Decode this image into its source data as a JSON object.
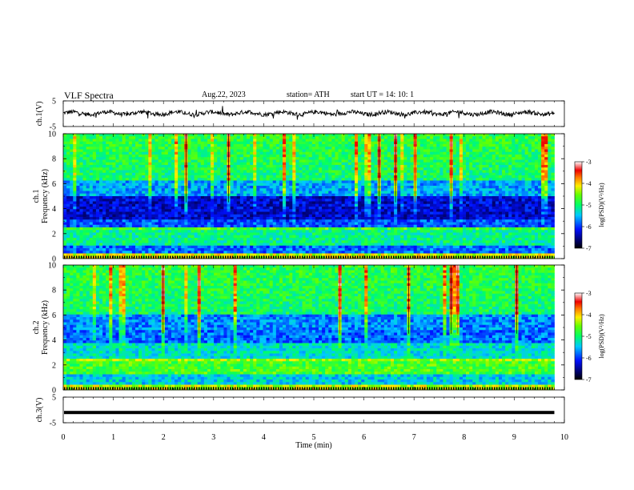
{
  "header": {
    "title": "VLF  Spectra",
    "date": "Aug.22, 2023",
    "station": "station= ATH",
    "start": "start  UT  =    14: 10: 1"
  },
  "chart_data": [
    {
      "type": "line",
      "panel": "ch1-waveform",
      "ylabel": "ch.1(V)",
      "ylim": [
        -5,
        5
      ],
      "yticks": [
        "5",
        "-5"
      ],
      "xlim": [
        0,
        10
      ],
      "duration_min": 9.8,
      "baseline": 0.2,
      "color": "#000000"
    },
    {
      "type": "heatmap",
      "panel": "ch1-spectrogram",
      "ylabel": "ch.1\nFrequency (kHz)",
      "ylim": [
        0,
        10
      ],
      "yticks": [
        "0",
        "2",
        "4",
        "6",
        "8",
        "10"
      ],
      "xlim": [
        0,
        10
      ],
      "duration_min": 9.8,
      "colorbar": {
        "label": "log(PSD)(V²/Hz)",
        "range": [
          -7,
          -3
        ],
        "ticks": [
          "-3",
          "-4",
          "-5",
          "-6",
          "-7"
        ]
      }
    },
    {
      "type": "heatmap",
      "panel": "ch2-spectrogram",
      "ylabel": "ch.2\nFrequency (kHz)",
      "ylim": [
        0,
        10
      ],
      "yticks": [
        "0",
        "2",
        "4",
        "6",
        "8",
        "10"
      ],
      "xlim": [
        0,
        10
      ],
      "duration_min": 9.8,
      "colorbar": {
        "label": "log(PSD)(V²/Hz)",
        "range": [
          -7,
          -3
        ],
        "ticks": [
          "-3",
          "-4",
          "-5",
          "-6",
          "-7"
        ]
      }
    },
    {
      "type": "line",
      "panel": "ch3-waveform",
      "ylabel": "ch.3(V)",
      "ylim": [
        -5,
        5
      ],
      "yticks": [
        "5",
        "-5"
      ],
      "xlim": [
        0,
        10
      ],
      "duration_min": 9.8,
      "baseline": -1,
      "color": "#000000"
    }
  ],
  "xaxis": {
    "label": "Time  (min)",
    "ticks": [
      "0",
      "1",
      "2",
      "3",
      "4",
      "5",
      "6",
      "7",
      "8",
      "9",
      "10"
    ]
  }
}
